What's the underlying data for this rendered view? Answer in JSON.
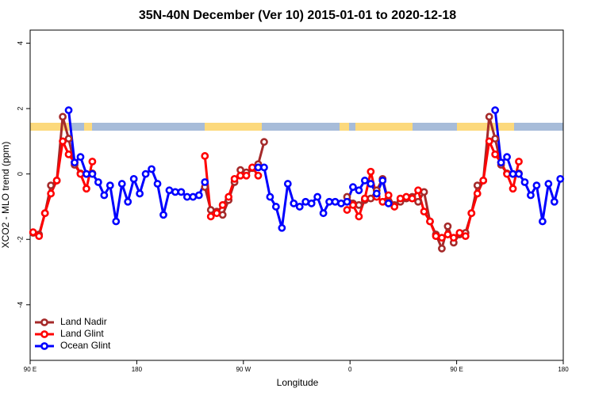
{
  "chart_data": {
    "type": "line",
    "title": "35N-40N December (Ver 10)   2015-01-01 to 2020-12-18",
    "xlabel": "Longitude",
    "ylabel": "XCO2 - MLO trend (ppm)",
    "x": [
      92.5,
      97.5,
      102.5,
      107.5,
      112.5,
      117.5,
      122.5,
      127.5,
      132.5,
      137.5,
      142.5,
      147.5,
      152.5,
      157.5,
      162.5,
      167.5,
      172.5,
      177.5,
      182.5,
      187.5,
      192.5,
      197.5,
      202.5,
      207.5,
      212.5,
      217.5,
      222.5,
      227.5,
      232.5,
      237.5,
      242.5,
      247.5,
      252.5,
      257.5,
      262.5,
      267.5,
      272.5,
      277.5,
      282.5,
      287.5,
      292.5,
      297.5,
      302.5,
      307.5,
      312.5,
      317.5,
      322.5,
      327.5,
      332.5,
      337.5,
      342.5,
      347.5,
      352.5,
      357.5,
      362.5,
      367.5,
      372.5,
      377.5,
      382.5,
      387.5,
      392.5,
      397.5,
      402.5,
      407.5,
      412.5,
      417.5,
      422.5,
      427.5,
      432.5,
      437.5,
      442.5,
      447.5,
      452.5,
      457.5,
      462.5,
      467.5,
      472.5,
      477.5,
      482.5,
      487.5,
      492.5,
      497.5,
      502.5,
      507.5,
      512.5,
      517.5,
      522.5,
      527.5,
      532.5,
      537.5
    ],
    "series": [
      {
        "name": "Land Nadir",
        "color": "#a52a2a",
        "values": [
          -1.8,
          -1.85,
          -1.2,
          -0.35,
          -0.2,
          1.75,
          1.08,
          0.28,
          0.02,
          0.0,
          0.02,
          null,
          null,
          null,
          null,
          null,
          null,
          null,
          null,
          null,
          null,
          null,
          null,
          null,
          null,
          null,
          null,
          null,
          null,
          -0.4,
          -1.1,
          -1.15,
          -1.25,
          -0.8,
          -0.25,
          0.12,
          0.05,
          0.18,
          0.3,
          0.98,
          null,
          null,
          null,
          null,
          null,
          null,
          null,
          null,
          null,
          null,
          null,
          null,
          null,
          -0.7,
          -0.9,
          -0.95,
          -0.8,
          -0.75,
          -0.5,
          -0.15,
          -0.85,
          -0.95,
          -0.85,
          -0.75,
          -0.7,
          -0.85,
          -0.55,
          -1.45,
          -1.85,
          -2.28,
          -1.6,
          -2.1,
          -1.85,
          -1.8,
          -1.2,
          -0.35,
          -0.2,
          1.75,
          1.08,
          0.28,
          0.02,
          0.0,
          0.02,
          null,
          null,
          null,
          null,
          null,
          null,
          null
        ]
      },
      {
        "name": "Land Glint",
        "color": "#ff0000",
        "values": [
          -1.78,
          -1.9,
          -1.2,
          -0.6,
          -0.2,
          1.0,
          0.6,
          0.35,
          0.0,
          -0.45,
          0.38,
          null,
          null,
          null,
          null,
          null,
          null,
          null,
          null,
          null,
          null,
          null,
          null,
          null,
          null,
          null,
          null,
          null,
          null,
          0.55,
          -1.3,
          -1.2,
          -0.95,
          -0.7,
          -0.15,
          -0.05,
          -0.05,
          0.2,
          -0.05,
          null,
          null,
          null,
          null,
          null,
          null,
          null,
          null,
          null,
          null,
          null,
          null,
          null,
          null,
          -1.1,
          -0.95,
          -1.3,
          -0.75,
          0.07,
          -0.7,
          -0.85,
          -0.65,
          -1.0,
          -0.75,
          -0.7,
          -0.75,
          -0.5,
          -1.15,
          -1.45,
          -1.9,
          -1.95,
          -1.85,
          -1.95,
          -1.8,
          -1.9,
          -1.2,
          -0.6,
          -0.2,
          1.0,
          0.6,
          0.35,
          0.0,
          -0.45,
          0.38,
          null,
          null,
          null,
          null,
          null,
          null,
          null
        ]
      },
      {
        "name": "Ocean Glint",
        "color": "#0000ff",
        "values": [
          null,
          null,
          null,
          null,
          null,
          null,
          1.95,
          0.35,
          0.52,
          0.0,
          0.0,
          -0.25,
          -0.65,
          -0.35,
          -1.45,
          -0.3,
          -0.85,
          -0.15,
          -0.6,
          0.0,
          0.15,
          -0.3,
          -1.25,
          -0.5,
          -0.55,
          -0.55,
          -0.7,
          -0.7,
          -0.65,
          -0.25,
          null,
          null,
          null,
          null,
          null,
          null,
          null,
          null,
          0.2,
          0.2,
          -0.7,
          -1.0,
          -1.65,
          -0.3,
          -0.9,
          -1.0,
          -0.85,
          -0.9,
          -0.7,
          -1.2,
          -0.85,
          -0.85,
          -0.9,
          -0.85,
          -0.4,
          -0.5,
          -0.2,
          -0.3,
          -0.6,
          -0.2,
          -0.9,
          null,
          null,
          null,
          null,
          null,
          null,
          null,
          null,
          null,
          null,
          null,
          null,
          null,
          null,
          null,
          null,
          null,
          1.95,
          0.35,
          0.52,
          0.0,
          0.0,
          -0.25,
          -0.65,
          -0.35,
          -1.45,
          -0.3,
          -0.85,
          -0.15
        ]
      }
    ],
    "xlim": [
      90,
      540
    ],
    "xticks": [
      {
        "value": 90,
        "label": "90 E"
      },
      {
        "value": 180,
        "label": "180"
      },
      {
        "value": 270,
        "label": "90 W"
      },
      {
        "value": 360,
        "label": "0"
      },
      {
        "value": 450,
        "label": "90 E"
      },
      {
        "value": 540,
        "label": "180"
      }
    ],
    "ylim": [
      -5.7,
      4.4
    ],
    "yticks": [
      -4,
      -2,
      0,
      2,
      4
    ],
    "legend": "bottomleft"
  }
}
